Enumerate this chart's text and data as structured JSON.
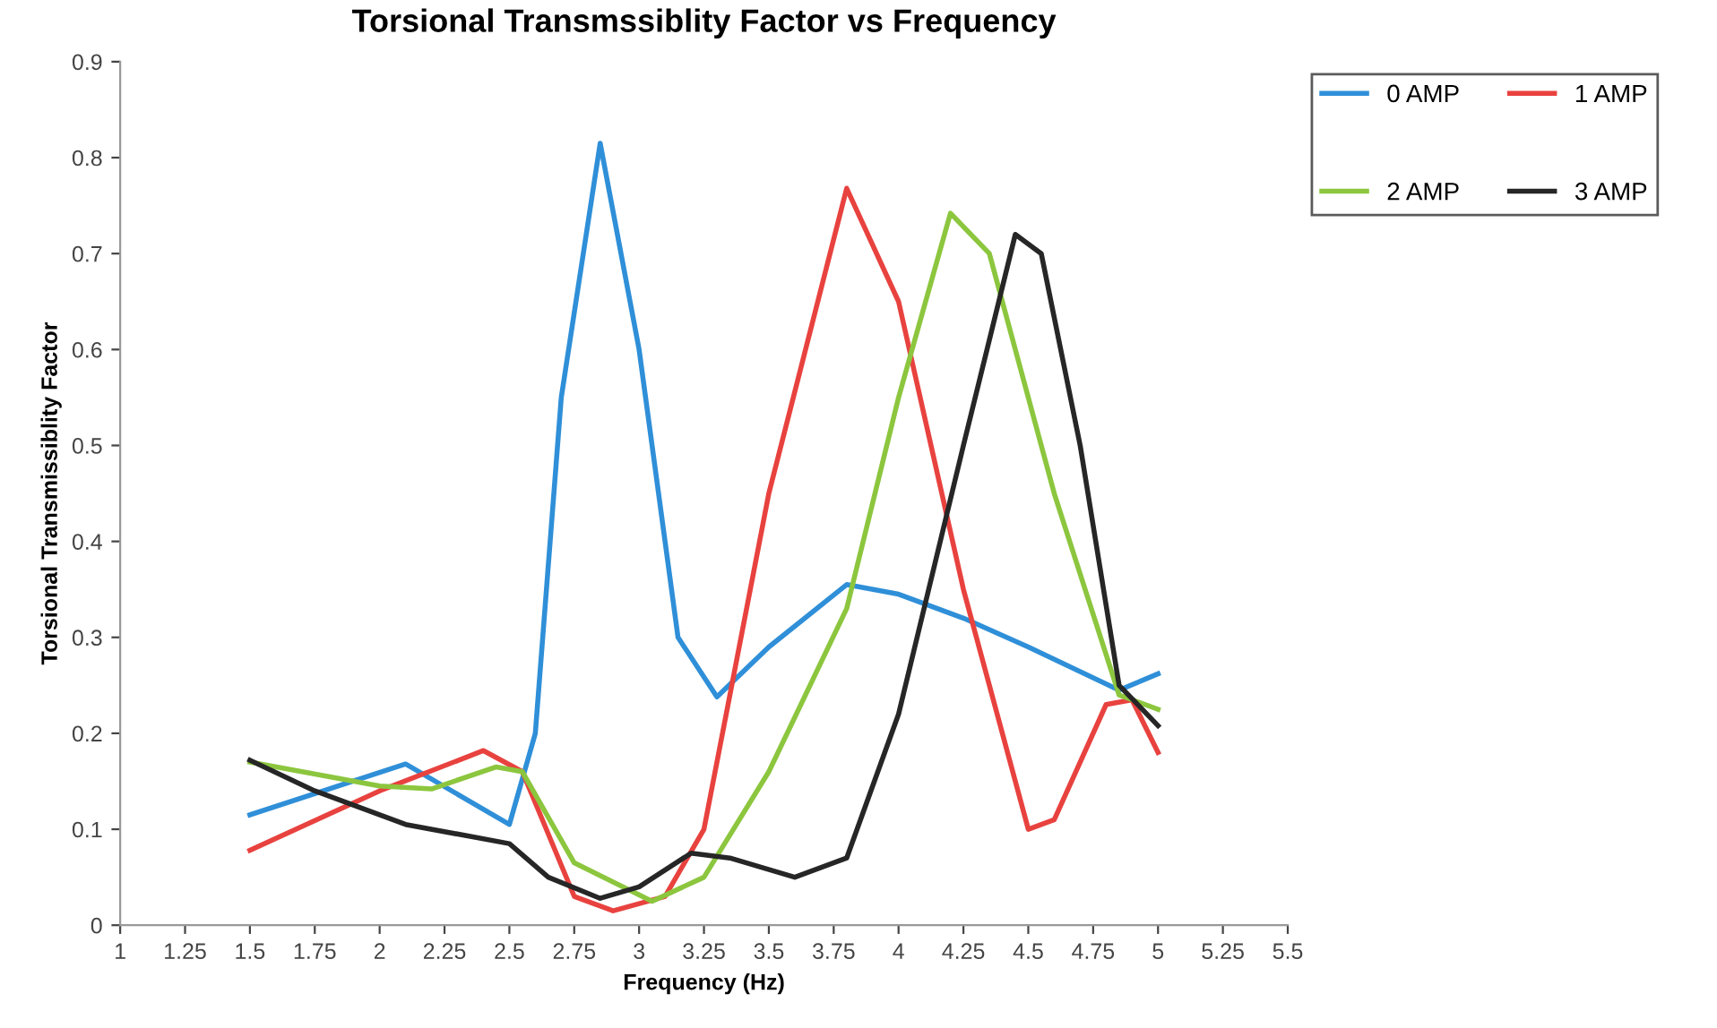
{
  "chart_data": {
    "type": "line",
    "title": "Torsional Transmssiblity Factor vs Frequency",
    "xlabel": "Frequency (Hz)",
    "ylabel": "Torsional Transmissiblity Factor",
    "xlim": [
      1,
      5.5
    ],
    "xticks": [
      1,
      1.25,
      1.5,
      1.75,
      2,
      2.25,
      2.5,
      2.75,
      3,
      3.25,
      3.5,
      3.75,
      4,
      4.25,
      4.5,
      4.75,
      5,
      5.25,
      5.5
    ],
    "ylim": [
      0,
      0.9
    ],
    "yticks": [
      0,
      0.1,
      0.2,
      0.3,
      0.4,
      0.5,
      0.6,
      0.7,
      0.8,
      0.9
    ],
    "grid": false,
    "legend": "top right",
    "marker": "none",
    "line_style": "solid",
    "series": [
      {
        "name": "0 AMP",
        "color": "#2f8fd8",
        "x": [
          1.5,
          2.1,
          2.5,
          2.6,
          2.7,
          2.85,
          3.0,
          3.15,
          3.3,
          3.5,
          3.8,
          4.0,
          4.25,
          4.5,
          4.85,
          5.0
        ],
        "values": [
          0.115,
          0.168,
          0.105,
          0.2,
          0.55,
          0.815,
          0.6,
          0.3,
          0.238,
          0.29,
          0.355,
          0.345,
          0.32,
          0.29,
          0.245,
          0.262
        ]
      },
      {
        "name": "1 AMP",
        "color": "#e8423f",
        "x": [
          1.5,
          2.0,
          2.4,
          2.55,
          2.75,
          2.9,
          3.1,
          3.25,
          3.5,
          3.8,
          4.0,
          4.25,
          4.5,
          4.6,
          4.8,
          4.9,
          5.0
        ],
        "values": [
          0.078,
          0.14,
          0.182,
          0.16,
          0.03,
          0.015,
          0.03,
          0.1,
          0.45,
          0.768,
          0.65,
          0.35,
          0.1,
          0.11,
          0.23,
          0.235,
          0.18
        ]
      },
      {
        "name": "2 AMP",
        "color": "#8cc63e",
        "x": [
          1.5,
          2.0,
          2.2,
          2.45,
          2.55,
          2.75,
          3.05,
          3.25,
          3.5,
          3.8,
          4.0,
          4.2,
          4.35,
          4.6,
          4.85,
          5.0
        ],
        "values": [
          0.17,
          0.145,
          0.142,
          0.165,
          0.16,
          0.065,
          0.025,
          0.05,
          0.16,
          0.33,
          0.55,
          0.742,
          0.7,
          0.45,
          0.24,
          0.225
        ]
      },
      {
        "name": "3 AMP",
        "color": "#262626",
        "x": [
          1.5,
          1.75,
          2.1,
          2.5,
          2.65,
          2.85,
          3.0,
          3.2,
          3.35,
          3.6,
          3.8,
          4.0,
          4.25,
          4.45,
          4.55,
          4.7,
          4.85,
          5.0
        ],
        "values": [
          0.172,
          0.14,
          0.105,
          0.085,
          0.05,
          0.028,
          0.04,
          0.075,
          0.07,
          0.05,
          0.07,
          0.22,
          0.5,
          0.72,
          0.7,
          0.5,
          0.25,
          0.208
        ]
      }
    ]
  }
}
